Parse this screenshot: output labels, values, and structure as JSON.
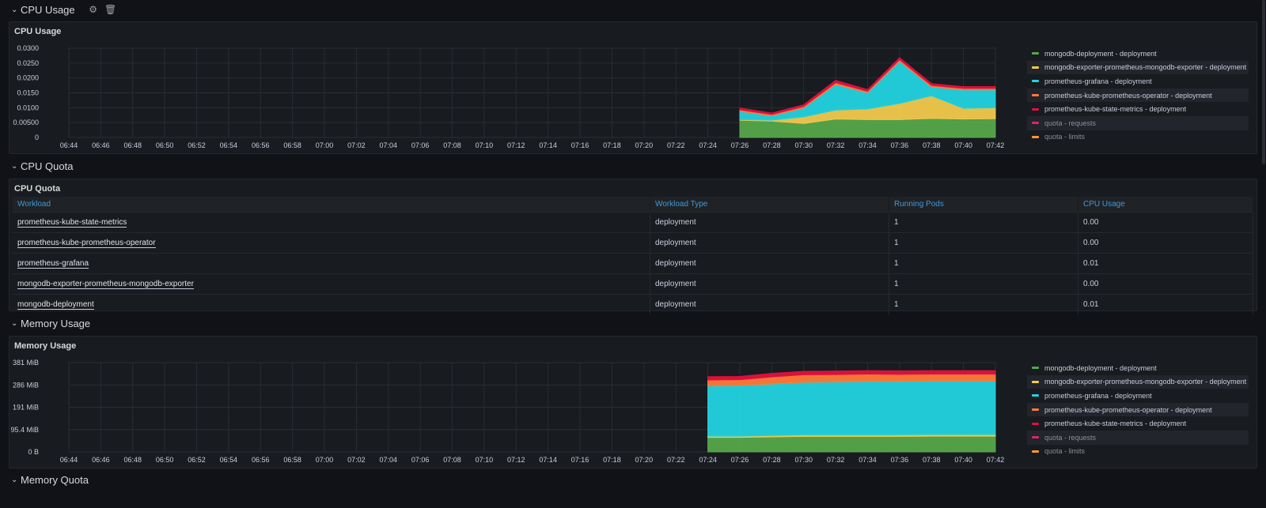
{
  "rows": {
    "cpu_usage": {
      "title": "CPU Usage",
      "settings_icon": "gear-icon",
      "delete_icon": "trash-icon"
    },
    "cpu_quota": {
      "title": "CPU Quota"
    },
    "memory_usage": {
      "title": "Memory Usage"
    },
    "memory_quota": {
      "title": "Memory Quota"
    }
  },
  "series_colors": {
    "mongodb-deployment": "#56a64b",
    "mongodb-exporter": "#f2c94c",
    "prometheus-grafana": "#22d3e0",
    "prometheus-kube-prometheus-operator": "#ff7b39",
    "prometheus-kube-state-metrics": "#e0113f",
    "quota-requests": "#e0226e",
    "quota-limits": "#ff9830"
  },
  "legend": [
    {
      "label": "mongodb-deployment - deployment",
      "color": "#56a64b"
    },
    {
      "label": "mongodb-exporter-prometheus-mongodb-exporter - deployment",
      "color": "#f2c94c"
    },
    {
      "label": "prometheus-grafana - deployment",
      "color": "#22d3e0"
    },
    {
      "label": "prometheus-kube-prometheus-operator - deployment",
      "color": "#ff7b39"
    },
    {
      "label": "prometheus-kube-state-metrics - deployment",
      "color": "#e0113f"
    },
    {
      "label": "quota - requests",
      "color": "#e0226e"
    },
    {
      "label": "quota - limits",
      "color": "#ff9830"
    }
  ],
  "cpu_panel": {
    "title": "CPU Usage"
  },
  "quota_panel": {
    "title": "CPU Quota",
    "columns": [
      "Workload",
      "Workload Type",
      "Running Pods",
      "CPU Usage"
    ],
    "rows": [
      [
        "prometheus-kube-state-metrics",
        "deployment",
        "1",
        "0.00"
      ],
      [
        "prometheus-kube-prometheus-operator",
        "deployment",
        "1",
        "0.00"
      ],
      [
        "prometheus-grafana",
        "deployment",
        "1",
        "0.01"
      ],
      [
        "mongodb-exporter-prometheus-mongodb-exporter",
        "deployment",
        "1",
        "0.00"
      ],
      [
        "mongodb-deployment",
        "deployment",
        "1",
        "0.01"
      ]
    ]
  },
  "memory_panel": {
    "title": "Memory Usage"
  },
  "chart_data": [
    {
      "type": "area",
      "title": "CPU Usage",
      "stacked": true,
      "x_ticks": [
        "06:44",
        "06:46",
        "06:48",
        "06:50",
        "06:52",
        "06:54",
        "06:56",
        "06:58",
        "07:00",
        "07:02",
        "07:04",
        "07:06",
        "07:08",
        "07:10",
        "07:12",
        "07:14",
        "07:16",
        "07:18",
        "07:20",
        "07:22",
        "07:24",
        "07:26",
        "07:28",
        "07:30",
        "07:32",
        "07:34",
        "07:36",
        "07:38",
        "07:40",
        "07:42"
      ],
      "y_ticks": [
        "0",
        "0.00500",
        "0.0100",
        "0.0150",
        "0.0200",
        "0.0250",
        "0.0300"
      ],
      "ylim": [
        0,
        0.03
      ],
      "x": [
        "07:26",
        "07:28",
        "07:30",
        "07:32",
        "07:34",
        "07:36",
        "07:38",
        "07:40",
        "07:42"
      ],
      "series": [
        {
          "name": "mongodb-deployment - deployment",
          "values": [
            0.0058,
            0.0055,
            0.0047,
            0.0062,
            0.006,
            0.006,
            0.0064,
            0.0062,
            0.0063
          ]
        },
        {
          "name": "mongodb-exporter-prometheus-mongodb-exporter - deployment",
          "values": [
            0.0002,
            0.0003,
            0.0022,
            0.003,
            0.0036,
            0.0054,
            0.0076,
            0.0036,
            0.0037
          ]
        },
        {
          "name": "prometheus-grafana - deployment",
          "values": [
            0.0028,
            0.0015,
            0.003,
            0.0086,
            0.0054,
            0.0142,
            0.003,
            0.0062,
            0.006
          ]
        },
        {
          "name": "prometheus-kube-prometheus-operator - deployment",
          "values": [
            0.0005,
            0.0004,
            0.0005,
            0.0006,
            0.0005,
            0.0005,
            0.0005,
            0.0005,
            0.0005
          ]
        },
        {
          "name": "prometheus-kube-state-metrics - deployment",
          "values": [
            0.0006,
            0.0005,
            0.0006,
            0.0008,
            0.0006,
            0.0007,
            0.0006,
            0.0006,
            0.0006
          ]
        }
      ],
      "grid": true,
      "legend": "right"
    },
    {
      "type": "area",
      "title": "Memory Usage",
      "stacked": true,
      "x_ticks": [
        "06:44",
        "06:46",
        "06:48",
        "06:50",
        "06:52",
        "06:54",
        "06:56",
        "06:58",
        "07:00",
        "07:02",
        "07:04",
        "07:06",
        "07:08",
        "07:10",
        "07:12",
        "07:14",
        "07:16",
        "07:18",
        "07:20",
        "07:22",
        "07:24",
        "07:26",
        "07:28",
        "07:30",
        "07:32",
        "07:34",
        "07:36",
        "07:38",
        "07:40",
        "07:42"
      ],
      "y_ticks": [
        "0 B",
        "95.4 MiB",
        "191 MiB",
        "286 MiB",
        "381 MiB"
      ],
      "ylim": [
        0,
        381
      ],
      "yunit": "MiB",
      "x": [
        "07:24",
        "07:26",
        "07:28",
        "07:30",
        "07:32",
        "07:34",
        "07:36",
        "07:38",
        "07:40",
        "07:42"
      ],
      "series": [
        {
          "name": "mongodb-deployment - deployment",
          "values": [
            62,
            62,
            64,
            66,
            66,
            66,
            66,
            67,
            67,
            67
          ]
        },
        {
          "name": "mongodb-exporter-prometheus-mongodb-exporter - deployment",
          "values": [
            5,
            5,
            6,
            7,
            7,
            7,
            7,
            7,
            7,
            7
          ]
        },
        {
          "name": "prometheus-grafana - deployment",
          "values": [
            215,
            217,
            220,
            224,
            226,
            228,
            228,
            228,
            228,
            228
          ]
        },
        {
          "name": "prometheus-kube-prometheus-operator - deployment",
          "values": [
            25,
            24,
            30,
            32,
            31,
            31,
            30,
            30,
            30,
            30
          ]
        },
        {
          "name": "prometheus-kube-state-metrics - deployment",
          "values": [
            14,
            14,
            15,
            15,
            15,
            15,
            15,
            15,
            15,
            15
          ]
        }
      ],
      "grid": true,
      "legend": "right"
    }
  ]
}
